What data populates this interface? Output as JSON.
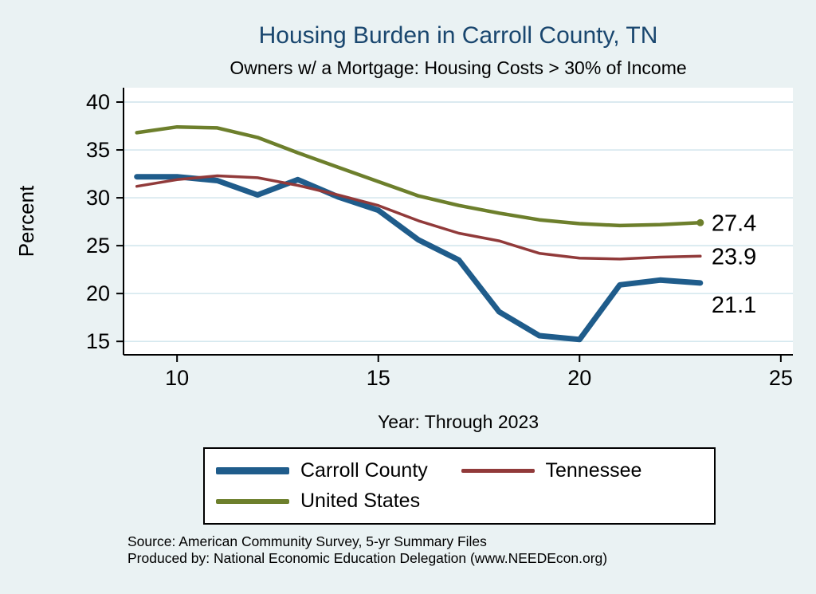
{
  "page": {
    "title": "Housing Burden in Carroll County, TN",
    "subtitle": "Owners w/ a Mortgage: Housing Costs > 30% of Income",
    "source_line1": "Source: American Community Survey, 5-yr Summary Files",
    "source_line2": "Produced by: National Economic Education Delegation (www.NEEDEcon.org)"
  },
  "colors": {
    "background": "#eaf2f3",
    "title": "#1a476f",
    "grid": "#cfe4ec",
    "axis": "#000000",
    "carroll": "#1f5c8b",
    "tennessee": "#913a3a",
    "us": "#6d7f2c"
  },
  "chart_data": {
    "type": "line",
    "title": "Housing Burden in Carroll County, TN",
    "subtitle": "Owners w/ a Mortgage: Housing Costs > 30% of Income",
    "xlabel": "Year: Through 2023",
    "ylabel": "Percent",
    "x": [
      9,
      10,
      11,
      12,
      13,
      14,
      15,
      16,
      17,
      18,
      19,
      20,
      21,
      22,
      23
    ],
    "x_meaning": "calendar years 2009-2023",
    "series": [
      {
        "name": "Carroll County",
        "color_key": "carroll",
        "width": 7,
        "values": [
          32.2,
          32.2,
          31.8,
          30.3,
          31.9,
          30.1,
          28.7,
          25.6,
          23.5,
          18.1,
          15.6,
          15.2,
          20.9,
          21.4,
          21.1
        ],
        "end_label": "21.1",
        "end_label_dy": 27,
        "end_marker": false
      },
      {
        "name": "Tennessee",
        "color_key": "tennessee",
        "width": 3.5,
        "values": [
          31.2,
          31.9,
          32.3,
          32.1,
          31.3,
          30.3,
          29.2,
          27.6,
          26.3,
          25.5,
          24.2,
          23.7,
          23.6,
          23.8,
          23.9
        ],
        "end_label": "23.9",
        "end_label_dy": 0,
        "end_marker": false
      },
      {
        "name": "United States",
        "color_key": "us",
        "width": 4.5,
        "values": [
          36.8,
          37.4,
          37.3,
          36.3,
          34.7,
          33.2,
          31.7,
          30.2,
          29.2,
          28.4,
          27.7,
          27.3,
          27.1,
          27.2,
          27.4
        ],
        "end_label": "27.4",
        "end_label_dy": 0,
        "end_marker": true
      }
    ],
    "xticks": [
      10,
      15,
      20,
      25
    ],
    "yticks": [
      15,
      20,
      25,
      30,
      35,
      40
    ],
    "xlim": [
      8.67,
      25.3
    ],
    "ylim": [
      13.6,
      41.5
    ],
    "grid": true,
    "grid_direction": "horizontal",
    "legend_position": "bottom"
  },
  "legend": {
    "rows": 2,
    "columns": 2,
    "order": [
      "Carroll County",
      "Tennessee",
      "United States"
    ]
  }
}
